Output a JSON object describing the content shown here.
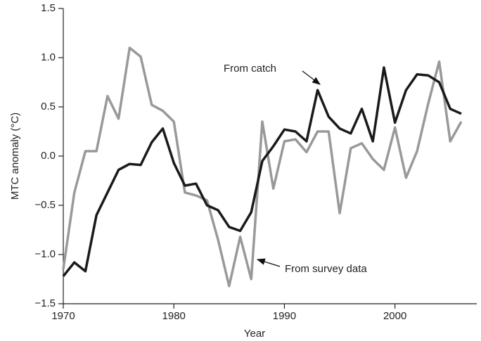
{
  "chart_data": {
    "type": "line",
    "xlabel": "Year",
    "ylabel": "MTC anomaly (°C)",
    "x": [
      1970,
      1971,
      1972,
      1973,
      1974,
      1975,
      1976,
      1977,
      1978,
      1979,
      1980,
      1981,
      1982,
      1983,
      1984,
      1985,
      1986,
      1987,
      1988,
      1989,
      1990,
      1991,
      1992,
      1993,
      1994,
      1995,
      1996,
      1997,
      1998,
      1999,
      2000,
      2001,
      2002,
      2003,
      2004,
      2005,
      2006
    ],
    "series": [
      {
        "name": "From survey data",
        "color": "#999999",
        "values": [
          -1.15,
          -0.37,
          0.05,
          0.05,
          0.61,
          0.38,
          1.1,
          1.01,
          0.52,
          0.46,
          0.35,
          -0.37,
          -0.4,
          -0.45,
          -0.85,
          -1.32,
          -0.82,
          -1.25,
          0.35,
          -0.33,
          0.15,
          0.17,
          0.04,
          0.25,
          0.25,
          -0.58,
          0.08,
          0.13,
          -0.03,
          -0.14,
          0.29,
          -0.22,
          0.05,
          0.53,
          0.96,
          0.15,
          0.35
        ]
      },
      {
        "name": "From catch",
        "color": "#1a1a1a",
        "values": [
          -1.22,
          -1.08,
          -1.17,
          -0.6,
          -0.37,
          -0.14,
          -0.08,
          -0.09,
          0.14,
          0.28,
          -0.07,
          -0.3,
          -0.28,
          -0.5,
          -0.55,
          -0.72,
          -0.76,
          -0.57,
          -0.05,
          0.1,
          0.27,
          0.25,
          0.15,
          0.67,
          0.4,
          0.28,
          0.23,
          0.48,
          0.15,
          0.9,
          0.34,
          0.67,
          0.83,
          0.82,
          0.75,
          0.48,
          0.43
        ]
      }
    ],
    "xlim": [
      1970,
      2007.4
    ],
    "xticks": [
      1970,
      1980,
      1990,
      2000
    ],
    "ylim": [
      -1.5,
      1.5
    ],
    "yticks": [
      {
        "value": -1.5,
        "label": "−1.5"
      },
      {
        "value": -1.0,
        "label": "−1.0"
      },
      {
        "value": -0.5,
        "label": "−0.5"
      },
      {
        "value": 0,
        "label": "0.0"
      },
      {
        "value": 0.5,
        "label": "0.5"
      },
      {
        "value": 1.0,
        "label": "1.0"
      },
      {
        "value": 1.5,
        "label": "1.5"
      }
    ],
    "grid": false
  }
}
